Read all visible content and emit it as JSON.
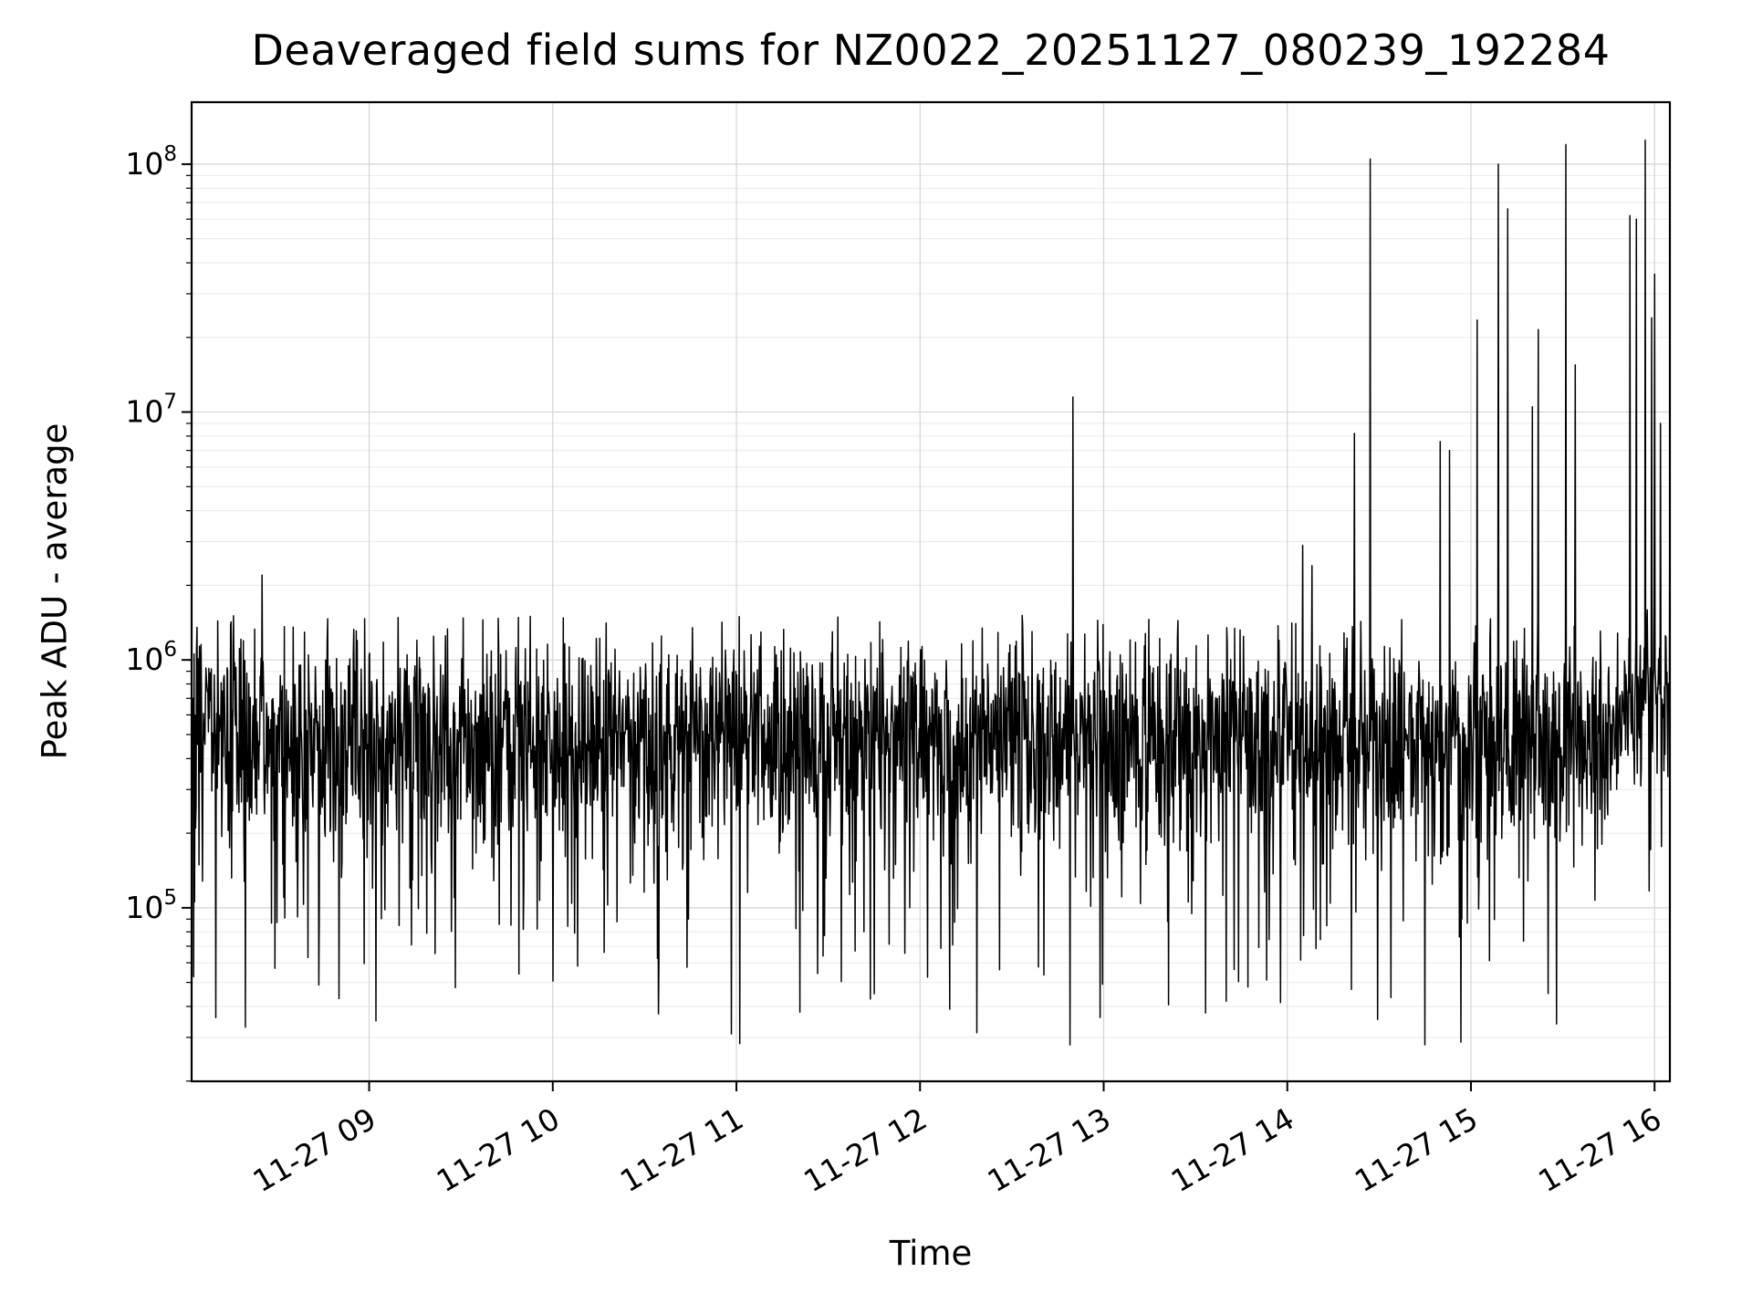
{
  "chart_data": {
    "type": "line",
    "title": "Deaveraged field sums for NZ0022_20251127_080239_192284",
    "xlabel": "Time",
    "ylabel": "Peak ADU - average",
    "y_scale": "log",
    "y_log_min": 4.3,
    "y_log_max": 8.25,
    "x_start_minutes": 482,
    "x_end_minutes": 965,
    "x_ticks": [
      {
        "minutes": 540,
        "label": "11-27 09"
      },
      {
        "minutes": 600,
        "label": "11-27 10"
      },
      {
        "minutes": 660,
        "label": "11-27 11"
      },
      {
        "minutes": 720,
        "label": "11-27 12"
      },
      {
        "minutes": 780,
        "label": "11-27 13"
      },
      {
        "minutes": 840,
        "label": "11-27 14"
      },
      {
        "minutes": 900,
        "label": "11-27 15"
      },
      {
        "minutes": 960,
        "label": "11-27 16"
      }
    ],
    "y_ticks": [
      {
        "value": 100000,
        "base": "10",
        "exp": "5"
      },
      {
        "value": 1000000,
        "base": "10",
        "exp": "6"
      },
      {
        "value": 10000000,
        "base": "10",
        "exp": "7"
      },
      {
        "value": 100000000,
        "base": "10",
        "exp": "8"
      }
    ],
    "grid": {
      "major_color": "#d4d4d4",
      "minor_color": "#eaeaea",
      "vertical_major": true
    },
    "line_color": "#000000",
    "axis_color": "#000000",
    "series": {
      "name": "Peak ADU - average",
      "n_points": 3000,
      "seed": 7,
      "baseline_log10": 5.7,
      "noise_sigma_log10": 0.21,
      "noise_cap_up_log10": 0.48,
      "noise_cap_down_log10": 0.62,
      "dip_probability": 0.09,
      "dip_depth_log10_range": [
        0.25,
        0.95
      ],
      "deep_dip_probability": 0.004,
      "deep_dip_extra_log10": 0.35,
      "end_rise_start_fraction": 0.955,
      "end_rise_log10": 0.22,
      "floor_log10": 4.42,
      "spikes": [
        {
          "minutes": 505,
          "value": 2200000
        },
        {
          "minutes": 770,
          "value": 11500000
        },
        {
          "minutes": 845,
          "value": 2900000
        },
        {
          "minutes": 848,
          "value": 2400000
        },
        {
          "minutes": 862,
          "value": 8200000
        },
        {
          "minutes": 867,
          "value": 105000000
        },
        {
          "minutes": 890,
          "value": 7600000
        },
        {
          "minutes": 893,
          "value": 7000000
        },
        {
          "minutes": 902,
          "value": 23500000
        },
        {
          "minutes": 909,
          "value": 100000000
        },
        {
          "minutes": 912,
          "value": 66000000
        },
        {
          "minutes": 920,
          "value": 10500000
        },
        {
          "minutes": 922,
          "value": 21500000
        },
        {
          "minutes": 931,
          "value": 120000000
        },
        {
          "minutes": 934,
          "value": 15500000
        },
        {
          "minutes": 952,
          "value": 62000000
        },
        {
          "minutes": 954,
          "value": 60000000
        },
        {
          "minutes": 957,
          "value": 125000000
        },
        {
          "minutes": 959,
          "value": 24000000
        },
        {
          "minutes": 960,
          "value": 36000000
        },
        {
          "minutes": 962,
          "value": 9000000
        },
        {
          "minutes": 965,
          "value": 10000000
        }
      ],
      "dips": [
        {
          "minutes": 705,
          "value": 45000
        },
        {
          "minutes": 820,
          "value": 42000
        },
        {
          "minutes": 885,
          "value": 28000
        },
        {
          "minutes": 928,
          "value": 34000
        }
      ]
    }
  }
}
